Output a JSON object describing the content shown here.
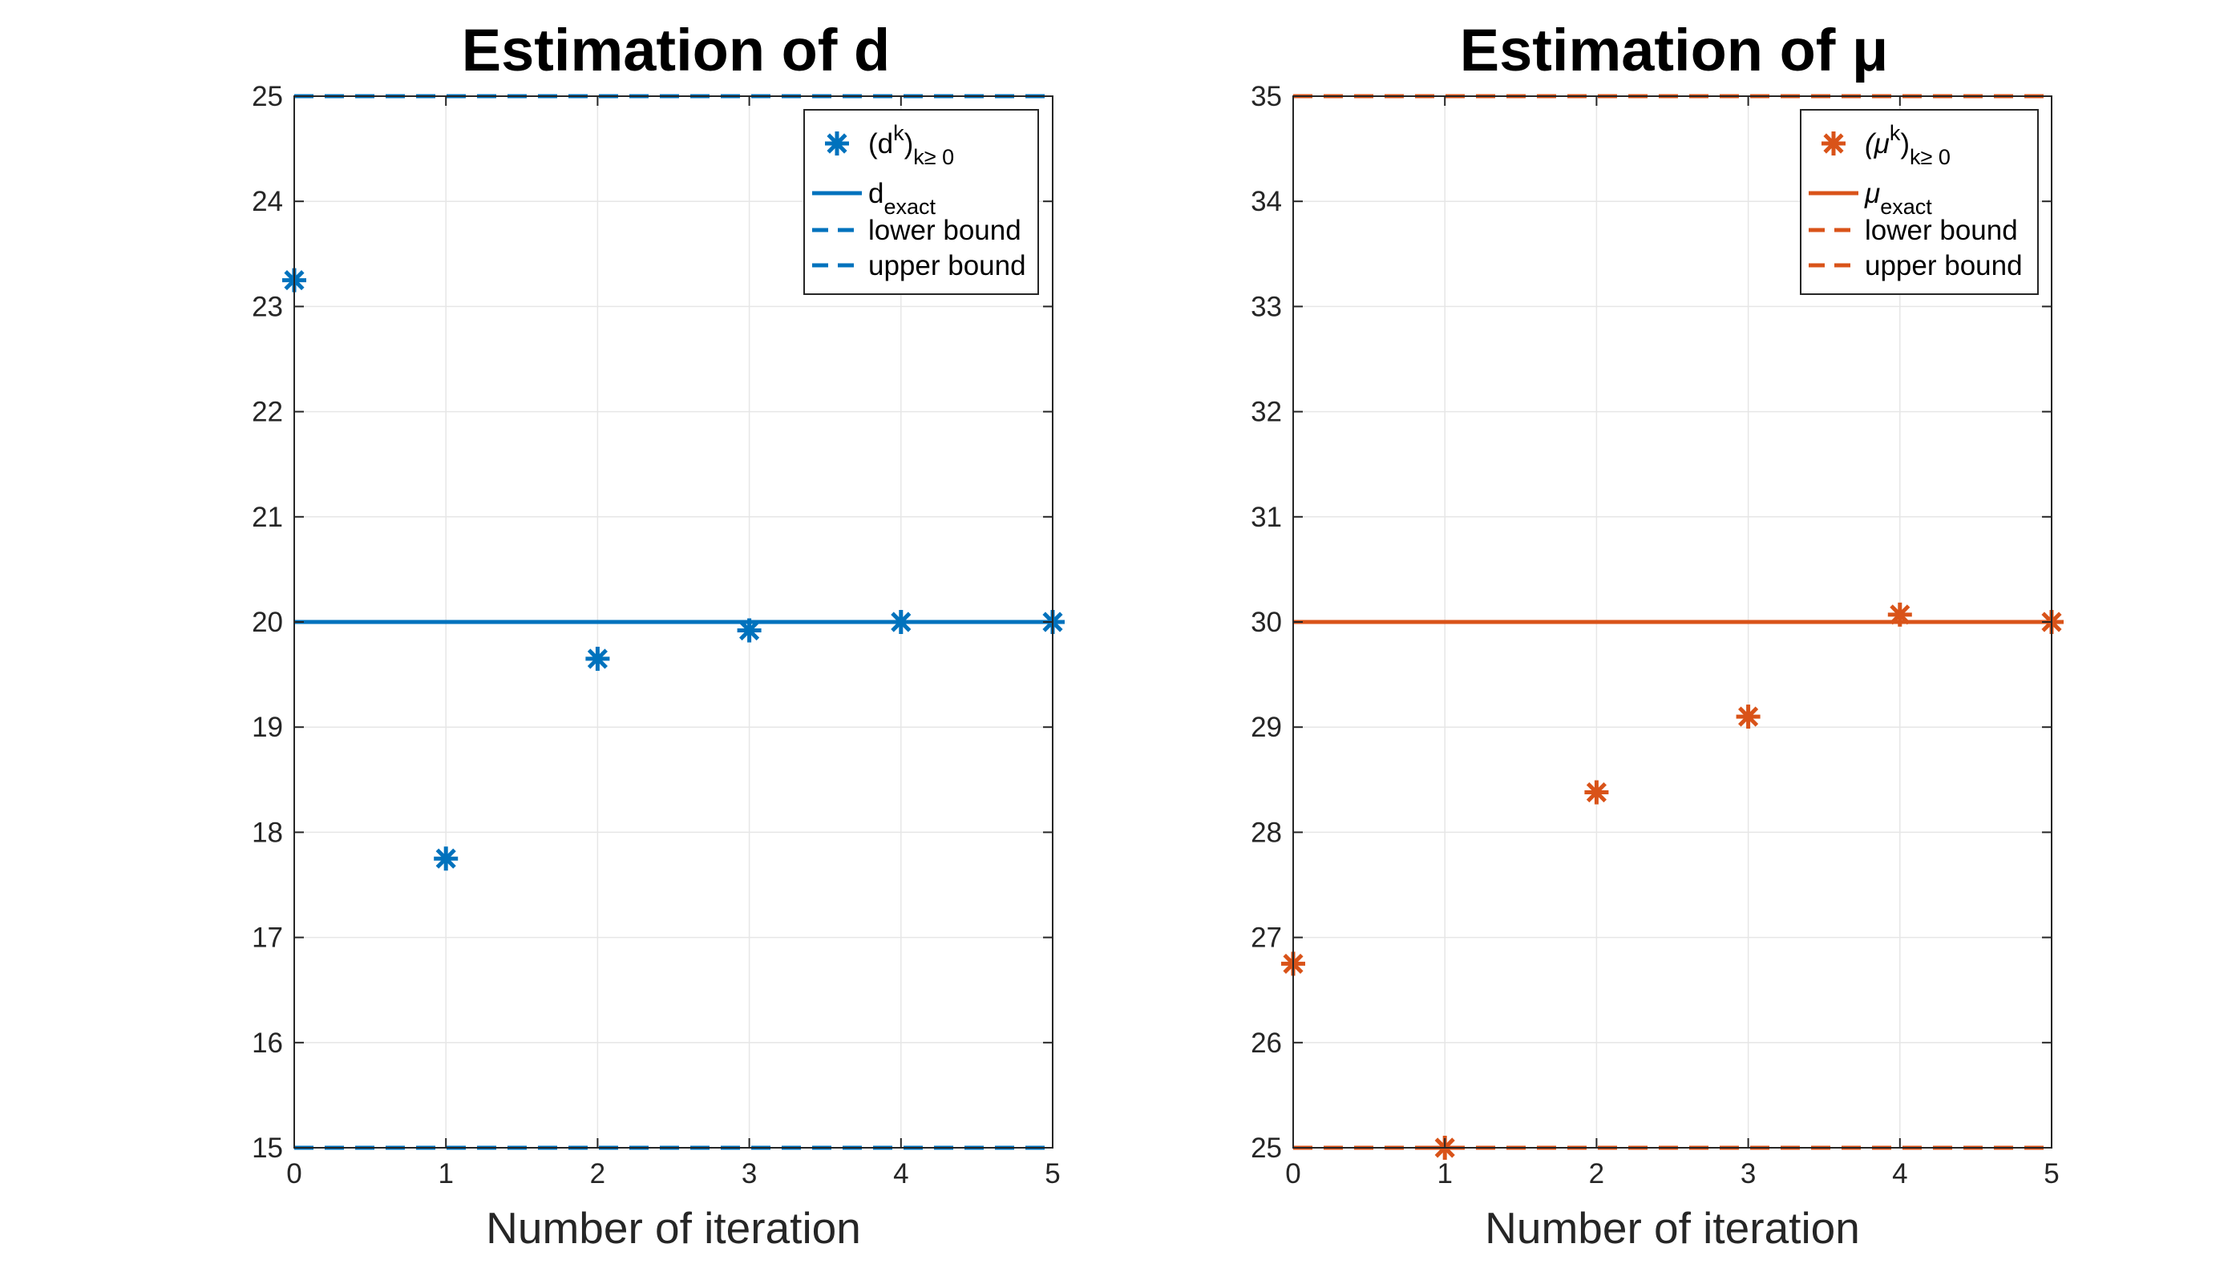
{
  "chart_data": [
    {
      "type": "scatter",
      "title": "Estimation of d",
      "xlabel": "Number of iteration",
      "ylabel": "",
      "xlim": [
        0,
        5
      ],
      "ylim": [
        15,
        25
      ],
      "xticks": [
        "0",
        "1",
        "2",
        "3",
        "4",
        "5"
      ],
      "yticks": [
        "15",
        "16",
        "17",
        "18",
        "19",
        "20",
        "21",
        "22",
        "23",
        "24",
        "25"
      ],
      "grid": true,
      "legend_position": "top-right",
      "color": "#0072BD",
      "series": [
        {
          "name": "(d^k)_k≥ 0",
          "marker": "asterisk",
          "x": [
            0,
            1,
            2,
            3,
            4,
            5
          ],
          "y": [
            23.25,
            17.75,
            19.65,
            19.92,
            20.0,
            20.0
          ]
        },
        {
          "name": "d_exact",
          "style": "solid",
          "y": 20
        },
        {
          "name": "lower bound",
          "style": "dashed",
          "y": 15
        },
        {
          "name": "upper bound",
          "style": "dashed",
          "y": 25
        }
      ],
      "legend": [
        {
          "main": "(d",
          "sup": "k",
          "close": ")",
          "sub": "k≥ 0"
        },
        {
          "main": "d",
          "sub": "exact"
        },
        {
          "main": "lower bound"
        },
        {
          "main": "upper bound"
        }
      ]
    },
    {
      "type": "scatter",
      "title": "Estimation of μ",
      "xlabel": "Number of iteration",
      "ylabel": "",
      "xlim": [
        0,
        5
      ],
      "ylim": [
        25,
        35
      ],
      "xticks": [
        "0",
        "1",
        "2",
        "3",
        "4",
        "5"
      ],
      "yticks": [
        "25",
        "26",
        "27",
        "28",
        "29",
        "30",
        "31",
        "32",
        "33",
        "34",
        "35"
      ],
      "grid": true,
      "legend_position": "top-right",
      "color": "#D95319",
      "series": [
        {
          "name": "(μ^k)_k≥ 0",
          "marker": "asterisk",
          "x": [
            0,
            1,
            2,
            3,
            4,
            5
          ],
          "y": [
            26.75,
            25.0,
            28.38,
            29.1,
            30.07,
            30.0
          ]
        },
        {
          "name": "μ_exact",
          "style": "solid",
          "y": 30
        },
        {
          "name": "lower bound",
          "style": "dashed",
          "y": 25
        },
        {
          "name": "upper bound",
          "style": "dashed",
          "y": 35
        }
      ],
      "legend": [
        {
          "main": "(μ",
          "sup": "k",
          "close": ")",
          "sub": "k≥ 0"
        },
        {
          "main": "μ",
          "sub": "exact"
        },
        {
          "main": "lower bound"
        },
        {
          "main": "upper bound"
        }
      ]
    }
  ]
}
